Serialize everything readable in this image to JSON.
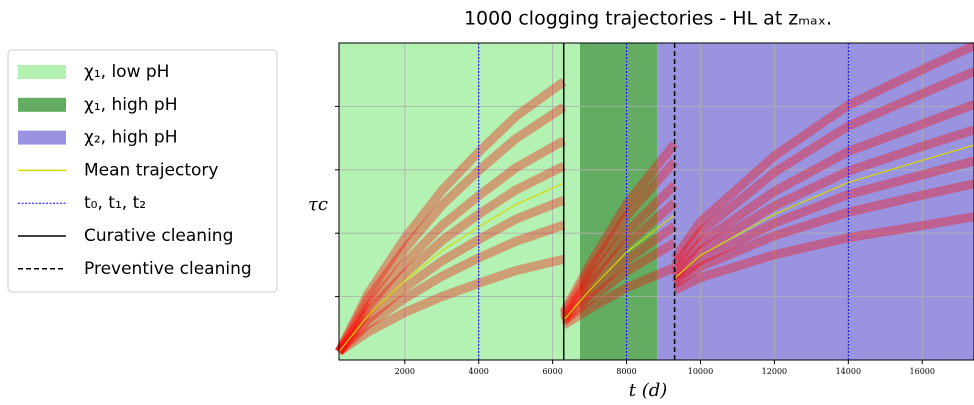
{
  "chart_data": {
    "type": "line",
    "title": "1000 clogging trajectories - HL at zₘₐₓ.",
    "x_label": "t (d)",
    "y_label": "τc",
    "xlim": [
      220,
      17400
    ],
    "ylim": [
      0,
      5
    ],
    "xticks": [
      2000,
      4000,
      6000,
      8000,
      10000,
      12000,
      14000,
      16000
    ],
    "yticks": [
      1,
      2,
      3,
      4
    ],
    "grid": true,
    "legend": "outside-left",
    "regions": [
      {
        "name": "χ₁, low pH",
        "range": [
          220,
          6740
        ],
        "color": "#b3f2b3"
      },
      {
        "name": "χ₁, high pH",
        "range": [
          6740,
          8830
        ],
        "color": "#63ad63"
      },
      {
        "name": "χ₂, high pH",
        "range": [
          8830,
          17400
        ],
        "color": "#9a94e0"
      }
    ],
    "x": [
      220,
      1000,
      2000,
      3000,
      4000,
      5000,
      6300,
      6300,
      6300,
      7000,
      8000,
      9300,
      9300,
      9300,
      10000,
      12000,
      14000,
      16000,
      17400
    ],
    "series": [
      {
        "name": "Mean trajectory",
        "color": "#d8d800",
        "values": [
          0.13,
          0.7,
          1.25,
          1.72,
          2.1,
          2.45,
          2.79,
          null,
          0.63,
          1.1,
          1.7,
          2.29,
          null,
          1.29,
          1.65,
          2.3,
          2.8,
          3.15,
          3.39
        ]
      }
    ],
    "trajectory_color": "#ff0000",
    "trajectories": [
      [
        0.13,
        0.44,
        0.75,
        1.0,
        1.21,
        1.41,
        1.59,
        null,
        0.55,
        0.81,
        1.14,
        1.46,
        null,
        1.1,
        1.3,
        1.66,
        1.93,
        2.12,
        2.26
      ],
      [
        0.13,
        0.56,
        0.97,
        1.32,
        1.61,
        1.87,
        2.13,
        null,
        0.6,
        0.95,
        1.4,
        1.85,
        null,
        1.2,
        1.47,
        1.96,
        2.33,
        2.6,
        2.78
      ],
      [
        0.13,
        0.64,
        1.14,
        1.56,
        1.9,
        2.22,
        2.52,
        null,
        0.62,
        1.04,
        1.58,
        2.11,
        null,
        1.25,
        1.57,
        2.16,
        2.61,
        2.92,
        3.14
      ],
      [
        0.13,
        0.76,
        1.36,
        1.88,
        2.3,
        2.68,
        3.06,
        null,
        0.65,
        1.17,
        1.83,
        2.48,
        null,
        1.32,
        1.72,
        2.43,
        2.98,
        3.37,
        3.63
      ],
      [
        0.13,
        0.84,
        1.53,
        2.12,
        2.59,
        3.03,
        3.46,
        null,
        0.68,
        1.27,
        2.02,
        2.76,
        null,
        1.4,
        1.85,
        2.66,
        3.29,
        3.72,
        4.03
      ],
      [
        0.13,
        0.96,
        1.75,
        2.44,
        2.99,
        3.49,
        3.99,
        null,
        0.72,
        1.4,
        2.27,
        3.13,
        null,
        1.5,
        2.02,
        2.96,
        3.69,
        4.2,
        4.55
      ],
      [
        0.13,
        1.04,
        1.92,
        2.67,
        3.28,
        3.84,
        4.39,
        null,
        0.75,
        1.5,
        2.46,
        3.41,
        null,
        1.6,
        2.18,
        3.22,
        4.02,
        4.58,
        4.96
      ]
    ],
    "markers": [
      {
        "name": "t₀, t₁, t₂",
        "values": [
          4000,
          8000,
          14000
        ],
        "color": "#0000ff",
        "style": "dotted"
      },
      {
        "name": "Curative cleaning",
        "values": [
          6300
        ],
        "color": "#000000",
        "style": "solid"
      },
      {
        "name": "Preventive cleaning",
        "values": [
          9300
        ],
        "color": "#000000",
        "style": "dashed"
      }
    ]
  }
}
